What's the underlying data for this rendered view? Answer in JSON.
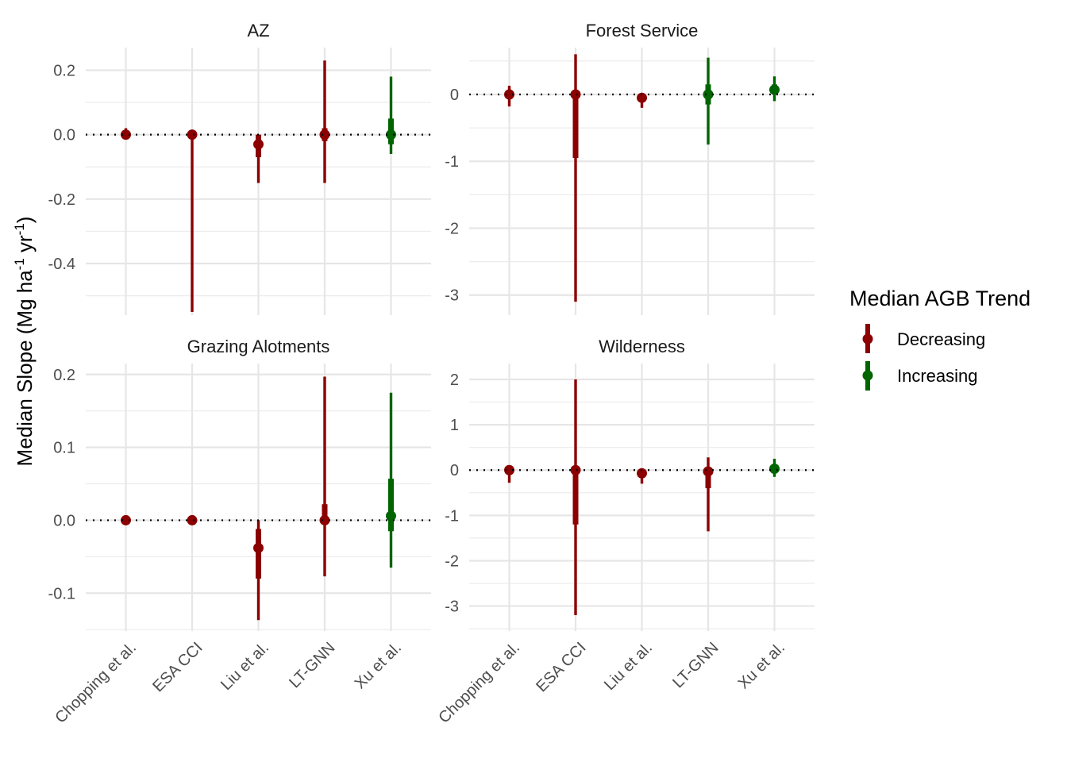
{
  "chart_data": {
    "type": "pointrange",
    "ylabel_main": "Median Slope (Mg ha",
    "ylabel_sup1": "-1",
    "ylabel_mid": " yr",
    "ylabel_sup2": "-1",
    "ylabel_end": ")",
    "categories": [
      "Chopping et al.",
      "ESA CCI",
      "Liu et al.",
      "LT-GNN",
      "Xu et al."
    ],
    "legend": {
      "title": "Median AGB Trend",
      "items": [
        {
          "label": "Decreasing",
          "color": "#8B0000"
        },
        {
          "label": "Increasing",
          "color": "#006400"
        }
      ]
    },
    "reference_line": 0,
    "panels": [
      {
        "title": "AZ",
        "ylim": [
          -0.56,
          0.27
        ],
        "yticks": [
          {
            "v": 0.2,
            "t": "0.2"
          },
          {
            "v": 0.0,
            "t": "0.0"
          },
          {
            "v": -0.2,
            "t": "-0.2"
          },
          {
            "v": -0.4,
            "t": "-0.4"
          }
        ],
        "yminor": [
          0.1,
          -0.1,
          -0.3,
          -0.5
        ],
        "points": [
          {
            "cat": "Chopping et al.",
            "trend": "Decreasing",
            "median": 0.0,
            "inner": [
              -0.01,
              0.01
            ],
            "outer": [
              -0.01,
              0.02
            ]
          },
          {
            "cat": "ESA CCI",
            "trend": "Decreasing",
            "median": 0.0,
            "inner": [
              -0.01,
              0.0
            ],
            "outer": [
              -0.55,
              0.0
            ]
          },
          {
            "cat": "Liu et al.",
            "trend": "Decreasing",
            "median": -0.03,
            "inner": [
              -0.07,
              0.0
            ],
            "outer": [
              -0.15,
              0.0
            ]
          },
          {
            "cat": "LT-GNN",
            "trend": "Decreasing",
            "median": 0.0,
            "inner": [
              -0.02,
              0.02
            ],
            "outer": [
              -0.15,
              0.23
            ]
          },
          {
            "cat": "Xu et al.",
            "trend": "Increasing",
            "median": 0.0,
            "inner": [
              -0.03,
              0.05
            ],
            "outer": [
              -0.06,
              0.18
            ]
          }
        ]
      },
      {
        "title": "Forest Service",
        "ylim": [
          -3.3,
          0.7
        ],
        "yticks": [
          {
            "v": 0,
            "t": "0"
          },
          {
            "v": -1,
            "t": "-1"
          },
          {
            "v": -2,
            "t": "-2"
          },
          {
            "v": -3,
            "t": "-3"
          }
        ],
        "yminor": [
          0.5,
          -0.5,
          -1.5,
          -2.5
        ],
        "points": [
          {
            "cat": "Chopping et al.",
            "trend": "Decreasing",
            "median": 0.0,
            "inner": [
              -0.06,
              0.05
            ],
            "outer": [
              -0.18,
              0.13
            ]
          },
          {
            "cat": "ESA CCI",
            "trend": "Decreasing",
            "median": 0.0,
            "inner": [
              -0.95,
              0.0
            ],
            "outer": [
              -3.1,
              0.6
            ]
          },
          {
            "cat": "Liu et al.",
            "trend": "Decreasing",
            "median": -0.05,
            "inner": [
              -0.1,
              0.0
            ],
            "outer": [
              -0.2,
              0.0
            ]
          },
          {
            "cat": "LT-GNN",
            "trend": "Increasing",
            "median": 0.0,
            "inner": [
              -0.15,
              0.15
            ],
            "outer": [
              -0.75,
              0.55
            ]
          },
          {
            "cat": "Xu et al.",
            "trend": "Increasing",
            "median": 0.07,
            "inner": [
              0.0,
              0.15
            ],
            "outer": [
              -0.1,
              0.27
            ]
          }
        ]
      },
      {
        "title": "Grazing Alotments",
        "ylim": [
          -0.152,
          0.215
        ],
        "yticks": [
          {
            "v": 0.2,
            "t": "0.2"
          },
          {
            "v": 0.1,
            "t": "0.1"
          },
          {
            "v": 0.0,
            "t": "0.0"
          },
          {
            "v": -0.1,
            "t": "-0.1"
          }
        ],
        "yminor": [
          0.15,
          0.05,
          -0.05,
          -0.15
        ],
        "points": [
          {
            "cat": "Chopping et al.",
            "trend": "Decreasing",
            "median": 0.0,
            "inner": [
              -0.003,
              0.003
            ],
            "outer": [
              -0.005,
              0.005
            ]
          },
          {
            "cat": "ESA CCI",
            "trend": "Decreasing",
            "median": 0.0,
            "inner": [
              -0.002,
              0.002
            ],
            "outer": [
              -0.003,
              0.003
            ]
          },
          {
            "cat": "Liu et al.",
            "trend": "Decreasing",
            "median": -0.038,
            "inner": [
              -0.08,
              -0.012
            ],
            "outer": [
              -0.137,
              0.0
            ]
          },
          {
            "cat": "LT-GNN",
            "trend": "Decreasing",
            "median": 0.0,
            "inner": [
              -0.005,
              0.022
            ],
            "outer": [
              -0.077,
              0.197
            ]
          },
          {
            "cat": "Xu et al.",
            "trend": "Increasing",
            "median": 0.006,
            "inner": [
              -0.015,
              0.057
            ],
            "outer": [
              -0.065,
              0.175
            ]
          }
        ]
      },
      {
        "title": "Wilderness",
        "ylim": [
          -3.55,
          2.35
        ],
        "yticks": [
          {
            "v": 2,
            "t": "2"
          },
          {
            "v": 1,
            "t": "1"
          },
          {
            "v": 0,
            "t": "0"
          },
          {
            "v": -1,
            "t": "-1"
          },
          {
            "v": -2,
            "t": "-2"
          },
          {
            "v": -3,
            "t": "-3"
          }
        ],
        "yminor": [
          1.5,
          0.5,
          -0.5,
          -1.5,
          -2.5,
          -3.5
        ],
        "points": [
          {
            "cat": "Chopping et al.",
            "trend": "Decreasing",
            "median": 0.0,
            "inner": [
              -0.1,
              0.1
            ],
            "outer": [
              -0.28,
              0.1
            ]
          },
          {
            "cat": "ESA CCI",
            "trend": "Decreasing",
            "median": 0.0,
            "inner": [
              -1.2,
              0.0
            ],
            "outer": [
              -3.2,
              2.0
            ]
          },
          {
            "cat": "Liu et al.",
            "trend": "Decreasing",
            "median": -0.07,
            "inner": [
              -0.17,
              0.0
            ],
            "outer": [
              -0.3,
              0.0
            ]
          },
          {
            "cat": "LT-GNN",
            "trend": "Decreasing",
            "median": -0.03,
            "inner": [
              -0.4,
              0.0
            ],
            "outer": [
              -1.35,
              0.28
            ]
          },
          {
            "cat": "Xu et al.",
            "trend": "Increasing",
            "median": 0.03,
            "inner": [
              -0.07,
              0.1
            ],
            "outer": [
              -0.15,
              0.25
            ]
          }
        ]
      }
    ]
  }
}
